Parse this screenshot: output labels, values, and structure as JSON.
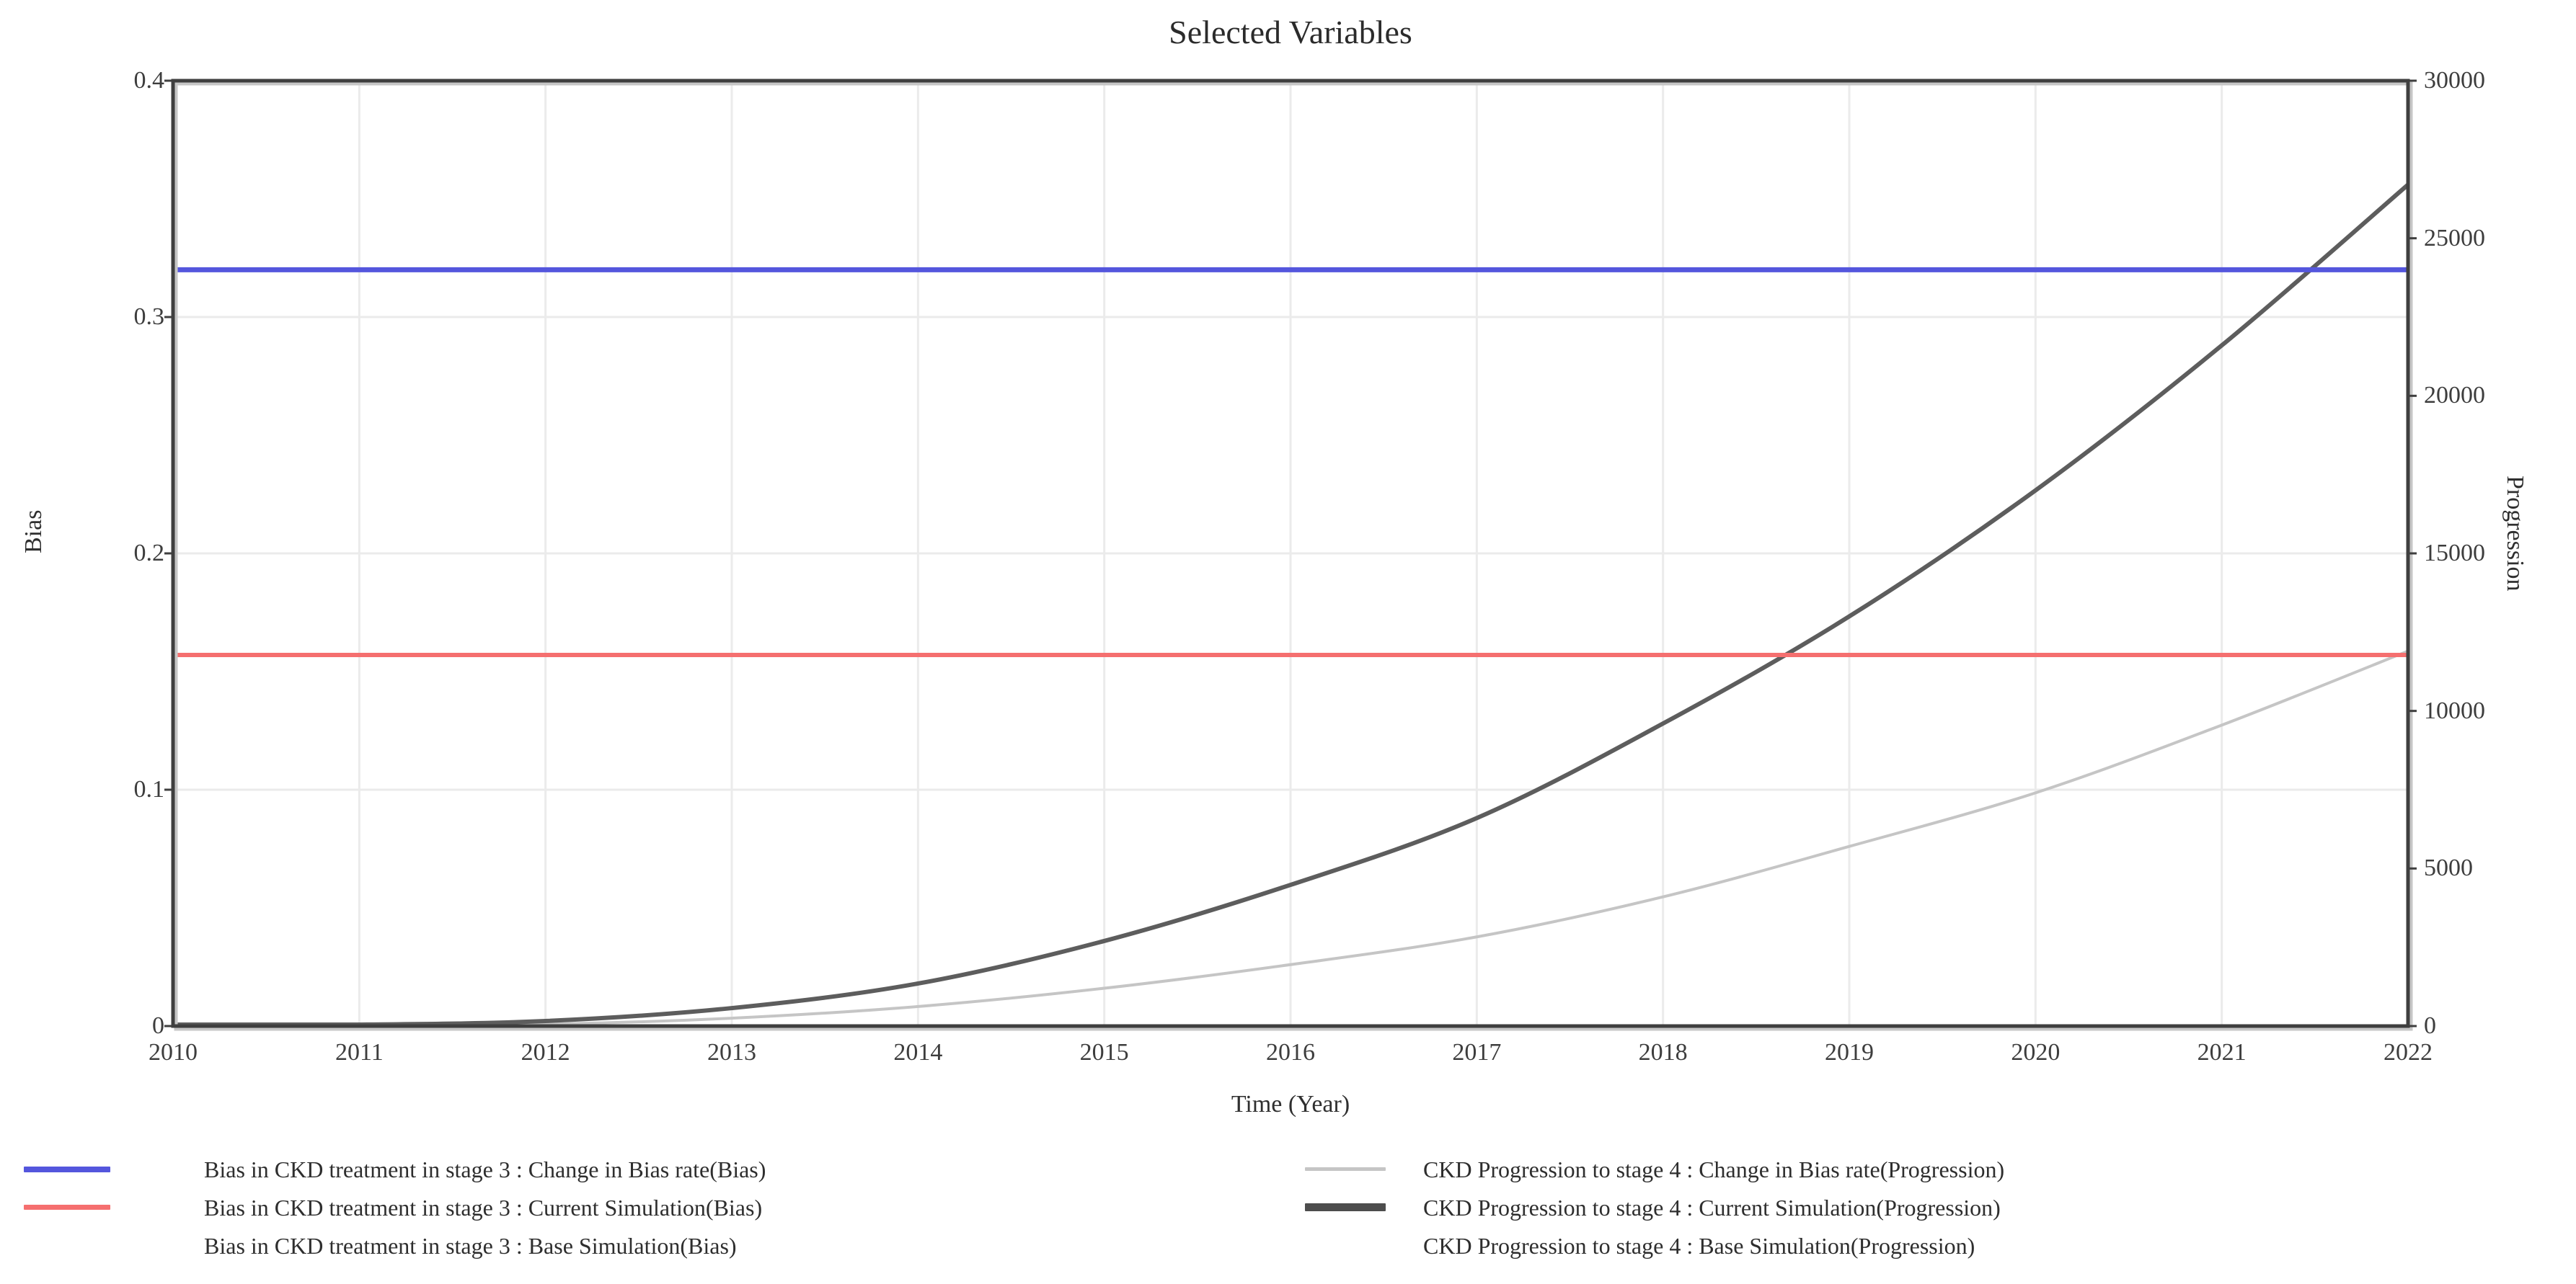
{
  "title": "Selected Variables",
  "axes": {
    "left": {
      "label": "Bias",
      "ticks": [
        "0.4",
        "0.3",
        "0.2",
        "0.1",
        "0"
      ]
    },
    "right": {
      "label": "Progression",
      "ticks": [
        "30000",
        "25000",
        "20000",
        "15000",
        "10000",
        "5000",
        "0"
      ]
    },
    "x": {
      "label": "Time (Year)",
      "ticks": [
        "2010",
        "2011",
        "2012",
        "2013",
        "2014",
        "2015",
        "2016",
        "2017",
        "2018",
        "2019",
        "2020",
        "2021",
        "2022"
      ]
    }
  },
  "colors": {
    "blue": "#5456dd",
    "red": "#f56f6f",
    "gray_thin": "#c5c5c5",
    "gray_thick": "#5d5d5d",
    "legend_dark": "#4d4d4d",
    "frame": "#3f3f3f",
    "frame_shadow": "#c6c6c6",
    "grid": "#ebebeb"
  },
  "chart_data": {
    "type": "line",
    "title": "Selected Variables",
    "xlabel": "Time (Year)",
    "x": [
      2010,
      2011,
      2012,
      2013,
      2014,
      2015,
      2016,
      2017,
      2018,
      2019,
      2020,
      2021,
      2022
    ],
    "ylim_left": [
      0,
      0.4
    ],
    "ylabel_left": "Bias",
    "ylim_right": [
      0,
      30000
    ],
    "ylabel_right": "Progression",
    "grid": true,
    "legend_position": "bottom",
    "series": [
      {
        "name": "Bias in CKD treatment in stage 3 : Change in Bias rate(Bias)",
        "axis": "left",
        "color_key": "blue",
        "values": [
          0.32,
          0.32,
          0.32,
          0.32,
          0.32,
          0.32,
          0.32,
          0.32,
          0.32,
          0.32,
          0.32,
          0.32,
          0.32
        ]
      },
      {
        "name": "Bias in CKD treatment in stage 3 : Current Simulation(Bias)",
        "axis": "left",
        "color_key": "red",
        "values": [
          0.157,
          0.157,
          0.157,
          0.157,
          0.157,
          0.157,
          0.157,
          0.157,
          0.157,
          0.157,
          0.157,
          0.157,
          0.157
        ]
      },
      {
        "name": "Bias in CKD treatment in stage 3 : Base Simulation(Bias)",
        "axis": "left",
        "color_key": null,
        "visible": false,
        "values": []
      },
      {
        "name": "CKD Progression to stage 4 : Change in Bias rate(Progression)",
        "axis": "right",
        "color_key": "gray_thin",
        "values": [
          0,
          10,
          60,
          250,
          620,
          1200,
          1950,
          2830,
          4100,
          5700,
          7400,
          9550,
          11900
        ]
      },
      {
        "name": "CKD Progression to stage 4 : Current Simulation(Progression)",
        "axis": "right",
        "color_key": "gray_thick",
        "values": [
          0,
          30,
          160,
          570,
          1350,
          2700,
          4480,
          6600,
          9600,
          13000,
          17000,
          21600,
          26700
        ]
      },
      {
        "name": "CKD Progression to stage 4 : Base Simulation(Progression)",
        "axis": "right",
        "color_key": null,
        "visible": false,
        "values": []
      }
    ]
  },
  "legend": {
    "columns": [
      {
        "items": [
          {
            "label": "Bias in CKD treatment in stage 3 : Change in Bias rate(Bias)",
            "sample": "blue"
          },
          {
            "label": "Bias in CKD treatment in stage 3 : Current Simulation(Bias)",
            "sample": "red"
          },
          {
            "label": "Bias in CKD treatment in stage 3 : Base Simulation(Bias)",
            "sample": "none"
          }
        ]
      },
      {
        "items": [
          {
            "label": "CKD Progression to stage 4 : Change in Bias rate(Progression)",
            "sample": "gray-thin"
          },
          {
            "label": "CKD Progression to stage 4 : Current Simulation(Progression)",
            "sample": "gray-thick"
          },
          {
            "label": "CKD Progression to stage 4 : Base Simulation(Progression)",
            "sample": "none"
          }
        ]
      }
    ]
  }
}
